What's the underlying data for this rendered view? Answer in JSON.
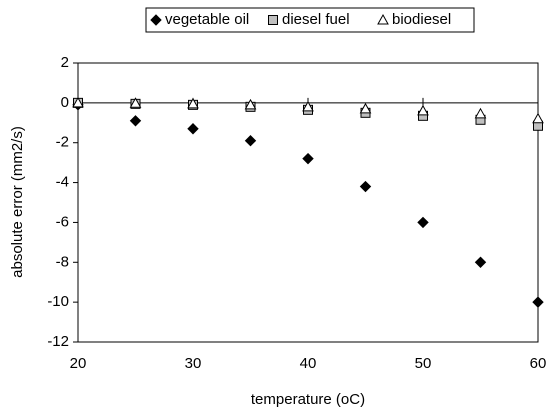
{
  "chart_data": {
    "type": "scatter",
    "x_label": "temperature (oC)",
    "y_label": "absolute error (mm2/s)",
    "x": [
      20,
      25,
      30,
      35,
      40,
      45,
      50,
      55,
      60
    ],
    "series": [
      {
        "name": "vegetable oil",
        "color": "#000000",
        "marker": "diamond",
        "values": [
          -0.1,
          -0.9,
          -1.3,
          -1.9,
          -2.8,
          -4.2,
          -6.0,
          -8.0,
          -10.0
        ]
      },
      {
        "name": "diesel fuel",
        "color": "#c0c0c0",
        "marker": "square",
        "values": [
          0,
          -0.05,
          -0.1,
          -0.2,
          -0.35,
          -0.5,
          -0.65,
          -0.85,
          -1.15
        ]
      },
      {
        "name": "biodiesel",
        "color": "#ffffff",
        "marker": "triangle",
        "values": [
          0,
          -0.02,
          -0.05,
          -0.1,
          -0.2,
          -0.3,
          -0.4,
          -0.55,
          -0.8
        ]
      }
    ],
    "xlim": [
      20,
      60
    ],
    "xticks": [
      20,
      30,
      40,
      50,
      60
    ],
    "ylim": [
      -12,
      2
    ],
    "yticks": [
      2,
      0,
      -2,
      -4,
      -6,
      -8,
      -10,
      -12
    ],
    "legend": "top",
    "grid": false
  }
}
